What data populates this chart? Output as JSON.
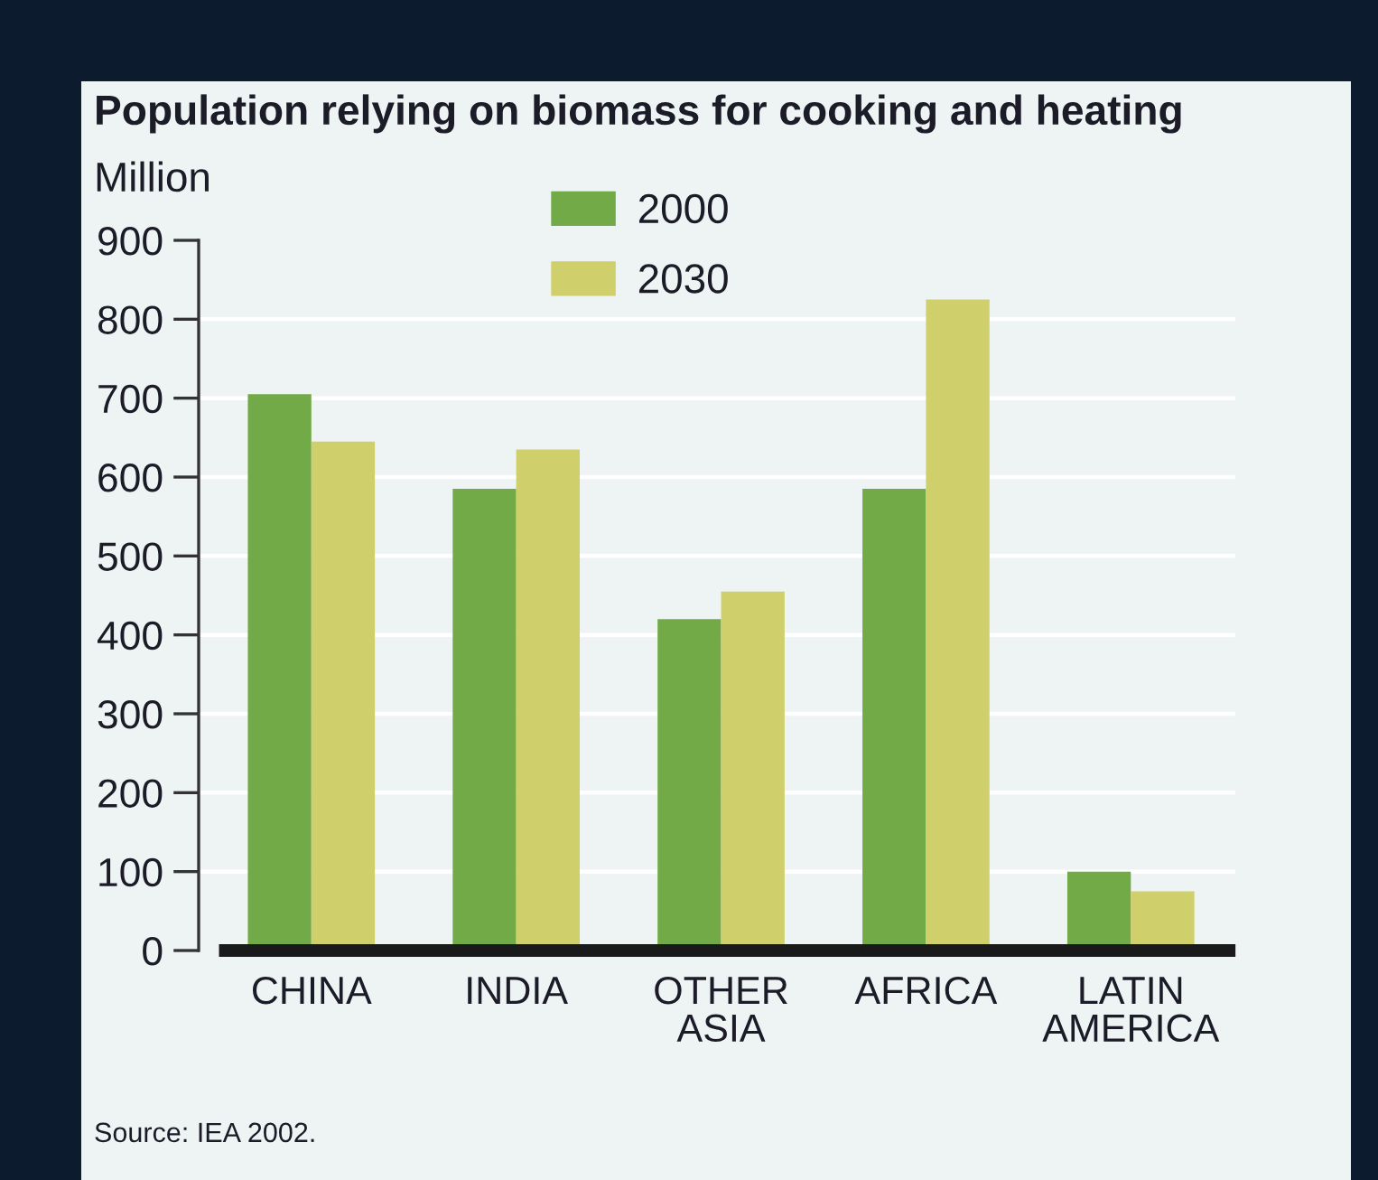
{
  "chart_data": {
    "type": "bar",
    "title": "Population relying on biomass for cooking and heating",
    "ylabel": "Million",
    "categories": [
      "CHINA",
      "INDIA",
      "OTHER\nASIA",
      "AFRICA",
      "LATIN\nAMERICA"
    ],
    "series": [
      {
        "name": "2000",
        "color": "#72aa48",
        "values": [
          705,
          585,
          420,
          585,
          100
        ]
      },
      {
        "name": "2030",
        "color": "#cfcf6c",
        "values": [
          645,
          635,
          455,
          825,
          75
        ]
      }
    ],
    "ylim": [
      0,
      900
    ],
    "yticks": [
      0,
      100,
      200,
      300,
      400,
      500,
      600,
      700,
      800,
      900
    ],
    "grid": "y",
    "legend": "top",
    "annotations": [
      "Source: IEA 2002."
    ]
  }
}
